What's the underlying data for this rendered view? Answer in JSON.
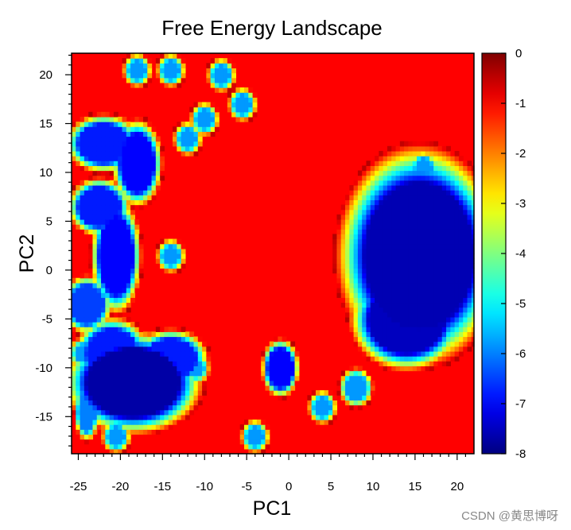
{
  "chart_data": {
    "type": "heatmap",
    "title": "Free Energy Landscape",
    "xlabel": "PC1",
    "ylabel": "PC2",
    "xlim": [
      -25.8,
      22.0
    ],
    "ylim": [
      -18.8,
      22.2
    ],
    "x_ticks": [
      -25,
      -20,
      -15,
      -10,
      -5,
      0,
      5,
      10,
      15,
      20
    ],
    "y_ticks": [
      -15,
      -10,
      -5,
      0,
      5,
      10,
      15,
      20
    ],
    "colorbar": {
      "range": [
        -8,
        0
      ],
      "ticks": [
        0,
        -1,
        -2,
        -3,
        -4,
        -5,
        -6,
        -7,
        -8
      ],
      "colormap": "jet",
      "colors": [
        "#ff0000",
        "#ff8000",
        "#ffff00",
        "#80ff00",
        "#00e040",
        "#00c0c0",
        "#0080ff",
        "#0040ff",
        "#0000ff"
      ]
    },
    "grid": false,
    "background_value": 0,
    "basins": [
      {
        "x": 15.5,
        "y": 1.5,
        "rx": 6.5,
        "ry": 7.5,
        "depth": -7.6
      },
      {
        "x": 14.0,
        "y": -5.0,
        "rx": 4.5,
        "ry": 3.5,
        "depth": -7.5
      },
      {
        "x": 17.0,
        "y": 5.0,
        "rx": 3.5,
        "ry": 3.0,
        "depth": -7.3
      },
      {
        "x": -18.5,
        "y": -11.5,
        "rx": 5.5,
        "ry": 3.5,
        "depth": -7.7
      },
      {
        "x": -21.0,
        "y": -8.5,
        "rx": 3.0,
        "ry": 2.5,
        "depth": -6.8
      },
      {
        "x": -14.0,
        "y": -9.0,
        "rx": 3.0,
        "ry": 2.0,
        "depth": -6.8
      },
      {
        "x": -20.5,
        "y": 1.5,
        "rx": 2.0,
        "ry": 4.0,
        "depth": -7.0
      },
      {
        "x": -22.5,
        "y": 6.5,
        "rx": 2.5,
        "ry": 2.0,
        "depth": -6.8
      },
      {
        "x": -18.0,
        "y": 11.0,
        "rx": 2.0,
        "ry": 3.0,
        "depth": -7.0
      },
      {
        "x": -22.0,
        "y": 13.0,
        "rx": 3.0,
        "ry": 2.0,
        "depth": -6.8
      },
      {
        "x": -24.0,
        "y": -3.5,
        "rx": 2.0,
        "ry": 2.0,
        "depth": -6.5
      },
      {
        "x": -1.0,
        "y": -10.0,
        "rx": 1.5,
        "ry": 2.0,
        "depth": -7.0
      },
      {
        "x": -24.0,
        "y": -14.5,
        "rx": 1.0,
        "ry": 2.0,
        "depth": -6.0
      }
    ],
    "rings": [
      {
        "x": -18.0,
        "y": 20.5,
        "r": 1.0
      },
      {
        "x": -14.0,
        "y": 20.5,
        "r": 1.0
      },
      {
        "x": -8.0,
        "y": 20.0,
        "r": 1.0
      },
      {
        "x": -5.5,
        "y": 17.0,
        "r": 1.0
      },
      {
        "x": -10.0,
        "y": 15.5,
        "r": 1.0
      },
      {
        "x": -12.0,
        "y": 13.5,
        "r": 1.0
      },
      {
        "x": -14.0,
        "y": 1.5,
        "r": 1.0
      },
      {
        "x": 16.0,
        "y": 10.5,
        "r": 1.0
      },
      {
        "x": -4.0,
        "y": -17.0,
        "r": 1.0
      },
      {
        "x": -20.5,
        "y": -17.0,
        "r": 1.0
      },
      {
        "x": 4.0,
        "y": -14.0,
        "r": 1.0
      },
      {
        "x": 8.0,
        "y": -12.0,
        "r": 1.3
      },
      {
        "x": 19.5,
        "y": -3.5,
        "r": 0.9
      },
      {
        "x": -11.0,
        "y": -10.0,
        "r": 0.9
      },
      {
        "x": -24.5,
        "y": -8.5,
        "r": 0.9
      }
    ]
  },
  "watermark": "CSDN @黄思博呀"
}
